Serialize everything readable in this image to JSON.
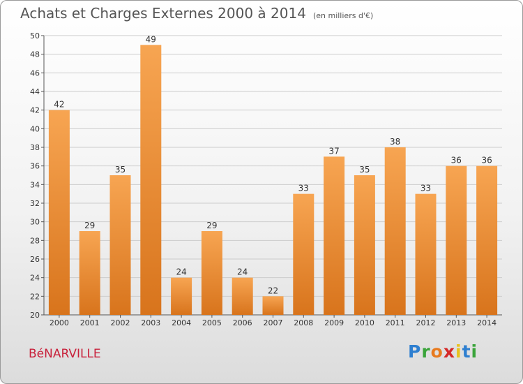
{
  "header": {
    "title": "Achats et Charges Externes 2000 à 2014",
    "subtitle": "(en milliers d'€)"
  },
  "footer": {
    "commune": "BéNARVILLE",
    "logo": [
      "P",
      "r",
      "o",
      "x",
      "i",
      "t",
      "i"
    ]
  },
  "colors": {
    "bar_light": "#f7a552",
    "bar_dark": "#d8741c",
    "grid": "#cccccc"
  },
  "chart_data": {
    "type": "bar",
    "categories": [
      "2000",
      "2001",
      "2002",
      "2003",
      "2004",
      "2005",
      "2006",
      "2007",
      "2008",
      "2009",
      "2010",
      "2011",
      "2012",
      "2013",
      "2014"
    ],
    "values": [
      42,
      29,
      35,
      49,
      24,
      29,
      24,
      22,
      33,
      37,
      35,
      38,
      33,
      36,
      36
    ],
    "ylim": [
      20,
      50
    ],
    "yticks": [
      20,
      22,
      24,
      26,
      28,
      30,
      32,
      34,
      36,
      38,
      40,
      42,
      44,
      46,
      48,
      50
    ],
    "grid": true,
    "legend": "none"
  }
}
